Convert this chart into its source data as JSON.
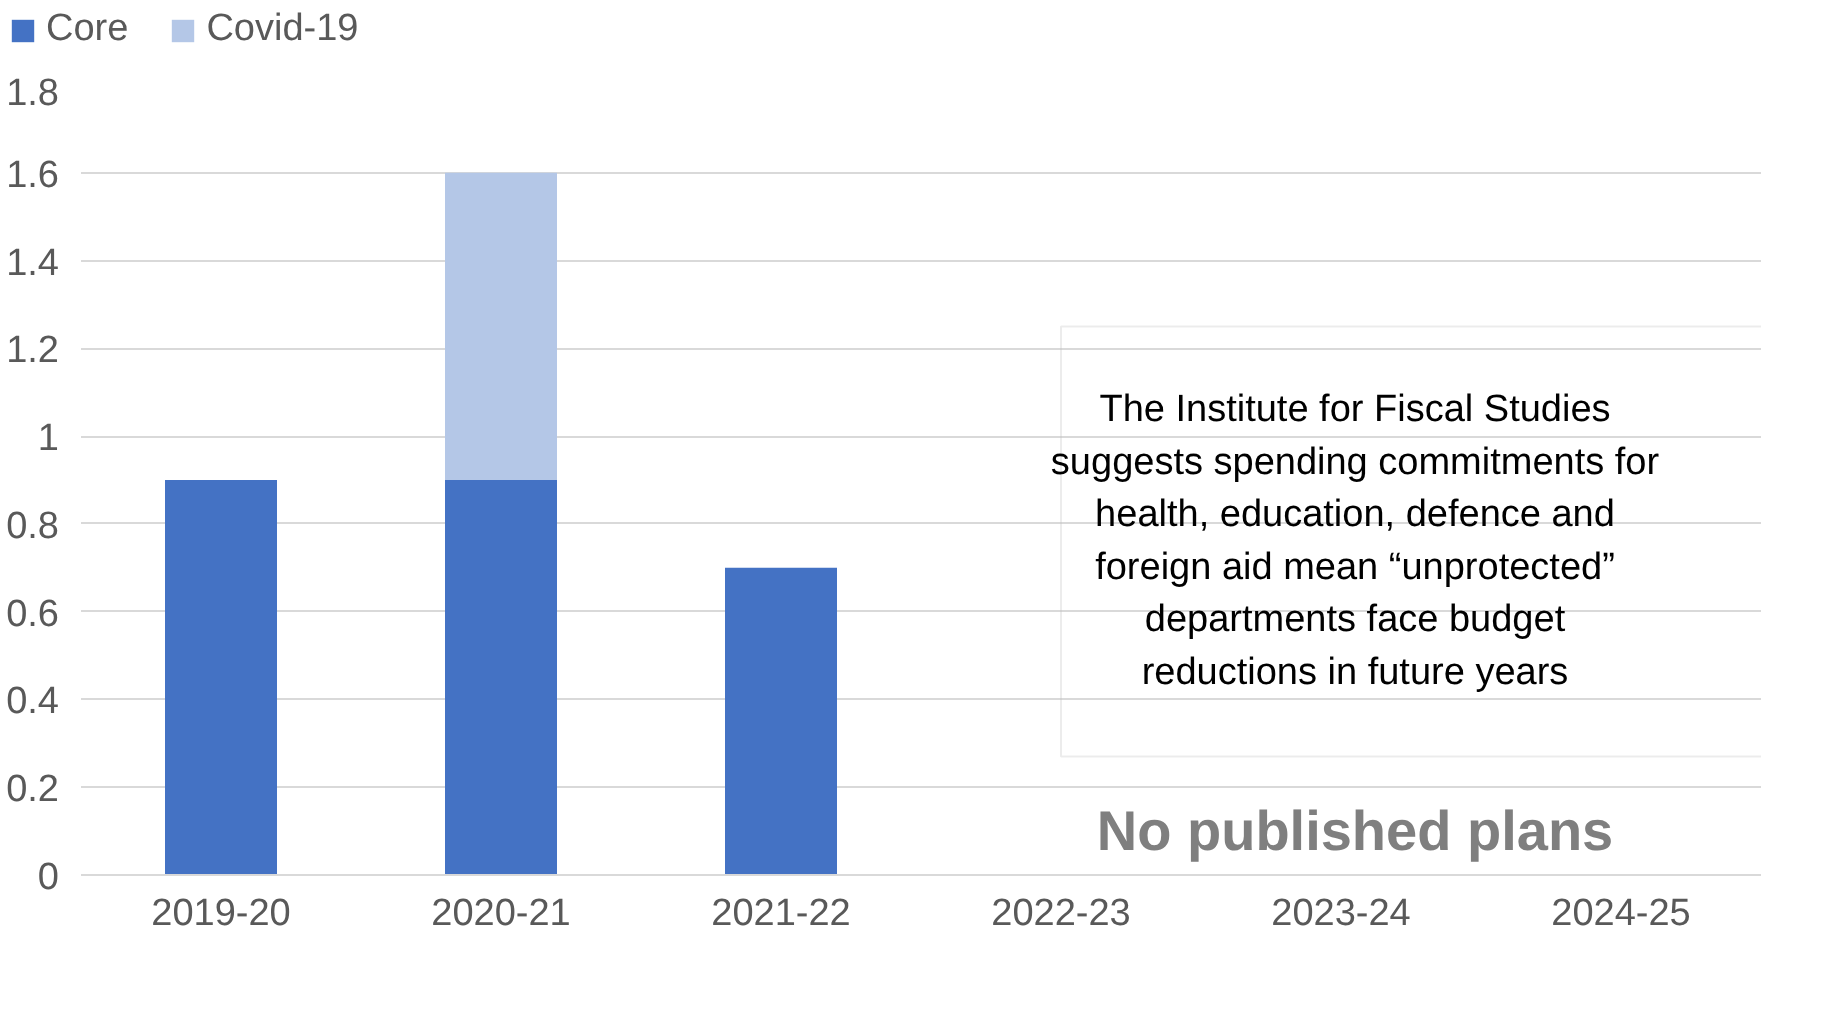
{
  "chart_data": {
    "type": "bar",
    "stacked": true,
    "categories": [
      "2019-20",
      "2020-21",
      "2021-22",
      "2022-23",
      "2023-24",
      "2024-25"
    ],
    "series": [
      {
        "name": "Core",
        "color": "#4472c4",
        "values": [
          0.9,
          0.9,
          0.7,
          null,
          null,
          null
        ]
      },
      {
        "name": "Covid-19",
        "color": "#b4c7e7",
        "values": [
          null,
          0.7,
          null,
          null,
          null,
          null
        ]
      }
    ],
    "ylim": [
      0,
      1.8
    ],
    "yticks": [
      0,
      0.2,
      0.4,
      0.6,
      0.8,
      1,
      1.2,
      1.4,
      1.6,
      1.8
    ],
    "grid": "y",
    "legend": "top left",
    "annotations": [
      "The Institute for Fiscal Studies suggests spending commitments for health, education, defence and foreign aid mean “unprotected” departments face budget reductions in future years",
      "No published plans"
    ]
  }
}
